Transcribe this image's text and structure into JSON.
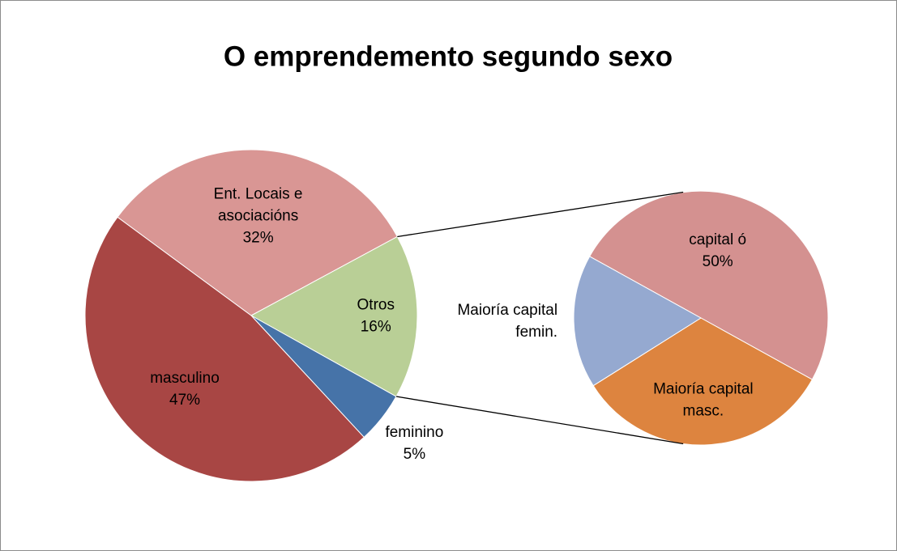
{
  "chart_data": {
    "type": "pie",
    "title": "O emprendemento segundo sexo",
    "categories": [
      "Ent. Locais e asociacións",
      "Otros",
      "feminino",
      "masculino"
    ],
    "values": [
      32,
      16,
      5,
      47
    ],
    "value_labels": [
      "32%",
      "16%",
      "5%",
      "47%"
    ],
    "colors": [
      "#d99694",
      "#b9cf96",
      "#4673a8",
      "#a84644"
    ],
    "secondary": {
      "categories": [
        "capital ó",
        "Maioría capital masc.",
        "Maioría capital femin."
      ],
      "values": [
        50,
        33,
        17
      ],
      "value_labels": [
        "50%",
        null,
        null
      ],
      "colors": [
        "#d49190",
        "#dd843f",
        "#95a9d0"
      ]
    }
  }
}
